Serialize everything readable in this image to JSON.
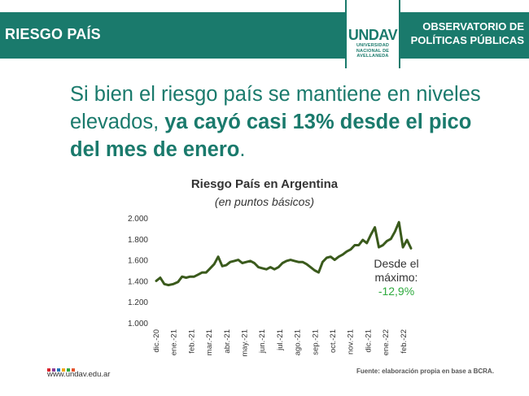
{
  "header": {
    "section_title": "RIESGO PAÍS",
    "org_line1": "OBSERVATORIO DE",
    "org_line2": "POLÍTICAS PÚBLICAS",
    "logo_text": "UNDAV",
    "logo_sub1": "UNIVERSIDAD",
    "logo_sub2": "NACIONAL DE",
    "logo_sub3": "AVELLANEDA"
  },
  "headline": {
    "part1": "Si bien el riesgo país se mantiene en niveles elevados, ",
    "bold": "ya cayó casi 13% desde el pico del mes de enero",
    "end": "."
  },
  "chart_data": {
    "type": "line",
    "title": "Riesgo País en Argentina",
    "subtitle": "(en puntos básicos)",
    "ylim": [
      1000,
      2000
    ],
    "yticks": [
      "1.000",
      "1.200",
      "1.400",
      "1.600",
      "1.800",
      "2.000"
    ],
    "x_ticks": [
      "dic.-20",
      "ene.-21",
      "feb.-21",
      "mar.-21",
      "abr.-21",
      "may.-21",
      "jun.-21",
      "jul.-21",
      "ago.-21",
      "sep.-21",
      "oct.-21",
      "nov.-21",
      "dic.-21",
      "ene.-22",
      "feb.-22"
    ],
    "grid": false,
    "series": [
      {
        "color": "#3a5a1c",
        "x": [
          "2020-12-01",
          "2020-12-08",
          "2020-12-15",
          "2020-12-22",
          "2020-12-31",
          "2021-01-08",
          "2021-01-15",
          "2021-01-22",
          "2021-01-29",
          "2021-02-05",
          "2021-02-12",
          "2021-02-19",
          "2021-02-26",
          "2021-03-05",
          "2021-03-12",
          "2021-03-19",
          "2021-03-26",
          "2021-04-02",
          "2021-04-09",
          "2021-04-16",
          "2021-04-23",
          "2021-04-30",
          "2021-05-07",
          "2021-05-14",
          "2021-05-21",
          "2021-05-28",
          "2021-06-04",
          "2021-06-11",
          "2021-06-18",
          "2021-06-25",
          "2021-07-02",
          "2021-07-09",
          "2021-07-16",
          "2021-07-23",
          "2021-07-30",
          "2021-08-06",
          "2021-08-13",
          "2021-08-20",
          "2021-08-27",
          "2021-09-03",
          "2021-09-10",
          "2021-09-17",
          "2021-09-24",
          "2021-10-01",
          "2021-10-08",
          "2021-10-15",
          "2021-10-22",
          "2021-10-29",
          "2021-11-05",
          "2021-11-12",
          "2021-11-19",
          "2021-11-26",
          "2021-12-03",
          "2021-12-10",
          "2021-12-17",
          "2021-12-24",
          "2021-12-31",
          "2022-01-07",
          "2022-01-14",
          "2022-01-21",
          "2022-01-28",
          "2022-02-04",
          "2022-02-11",
          "2022-02-18"
        ],
        "values": [
          1400,
          1430,
          1370,
          1360,
          1370,
          1390,
          1440,
          1430,
          1440,
          1440,
          1460,
          1480,
          1480,
          1520,
          1560,
          1630,
          1540,
          1550,
          1580,
          1590,
          1600,
          1570,
          1580,
          1590,
          1570,
          1530,
          1520,
          1510,
          1530,
          1510,
          1530,
          1570,
          1590,
          1600,
          1590,
          1580,
          1580,
          1560,
          1530,
          1500,
          1480,
          1580,
          1620,
          1630,
          1600,
          1630,
          1650,
          1680,
          1700,
          1740,
          1740,
          1790,
          1760,
          1840,
          1910,
          1720,
          1740,
          1780,
          1800,
          1870,
          1960,
          1720,
          1790,
          1710
        ]
      }
    ],
    "annotation": {
      "line1": "Desde el",
      "line2": "máximo:",
      "value": "-12,9%"
    }
  },
  "footer": {
    "source": "Fuente: elaboración propia en base a BCRA.",
    "url": "www.undav.edu.ar",
    "dot_colors": [
      "#d9232d",
      "#8a3f97",
      "#1f75bb",
      "#f2a516",
      "#2eaa3e",
      "#e4532b"
    ]
  }
}
